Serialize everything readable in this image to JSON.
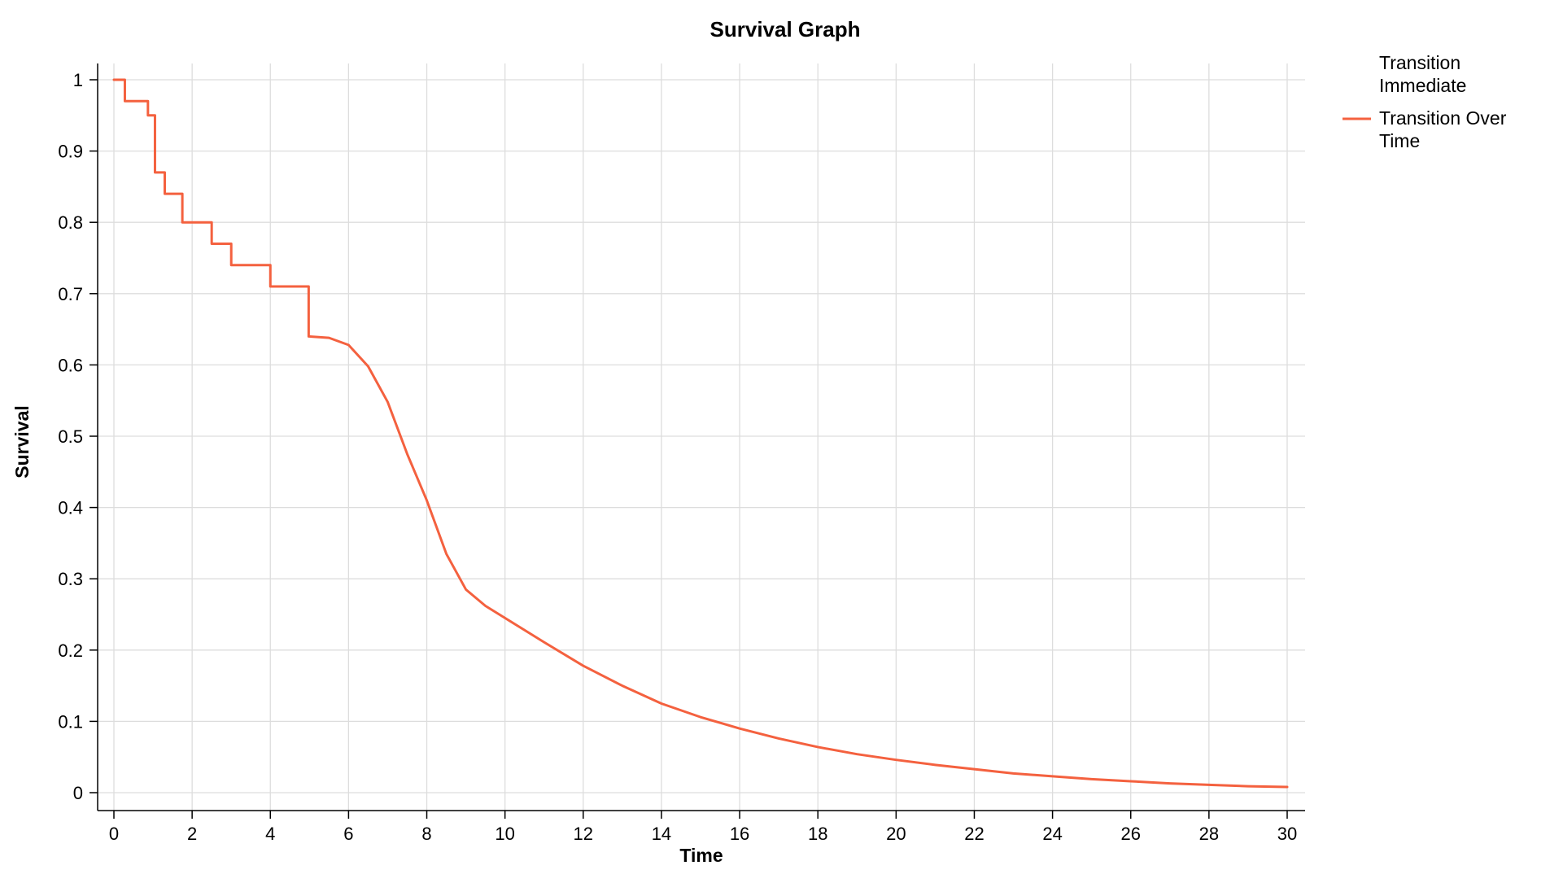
{
  "colors": {
    "series_over_time": "#f4613f",
    "grid": "#dddddd",
    "axis": "#000000",
    "background": "#ffffff"
  },
  "chart_data": {
    "type": "line",
    "title": "Survival Graph",
    "xlabel": "Time",
    "ylabel": "Survival",
    "xlim": [
      0,
      30
    ],
    "ylim": [
      0,
      1
    ],
    "x_ticks": [
      "0",
      "2",
      "4",
      "6",
      "8",
      "10",
      "12",
      "14",
      "16",
      "18",
      "20",
      "22",
      "24",
      "26",
      "28",
      "30"
    ],
    "y_ticks": [
      "0",
      "0.1",
      "0.2",
      "0.3",
      "0.4",
      "0.5",
      "0.6",
      "0.7",
      "0.8",
      "0.9",
      "1"
    ],
    "grid": true,
    "legend_position": "top-right",
    "series": [
      {
        "name": "Transition Immediate",
        "color": "none",
        "x": [],
        "y": []
      },
      {
        "name": "Transition Over Time",
        "color": "#f4613f",
        "step_x": [
          0,
          0.28,
          0.28,
          0.87,
          0.87,
          1.05,
          1.05,
          1.3,
          1.3,
          1.75,
          1.75,
          2.5,
          2.5,
          3.0,
          3.0,
          4.0,
          4.0,
          4.98,
          4.98
        ],
        "step_y": [
          1.0,
          1.0,
          0.97,
          0.97,
          0.95,
          0.95,
          0.87,
          0.87,
          0.84,
          0.84,
          0.8,
          0.8,
          0.77,
          0.77,
          0.74,
          0.74,
          0.71,
          0.71,
          0.64
        ],
        "x": [
          4.98,
          5.5,
          6.0,
          6.5,
          7.0,
          7.5,
          8.0,
          8.5,
          9.0,
          9.5,
          10.0,
          11.0,
          12.0,
          13.0,
          14.0,
          15.0,
          16.0,
          17.0,
          18.0,
          19.0,
          20.0,
          21.0,
          22.0,
          23.0,
          24.0,
          25.0,
          26.0,
          27.0,
          28.0,
          29.0,
          30.0
        ],
        "y": [
          0.64,
          0.638,
          0.628,
          0.598,
          0.548,
          0.475,
          0.41,
          0.335,
          0.285,
          0.262,
          0.245,
          0.211,
          0.178,
          0.15,
          0.125,
          0.106,
          0.09,
          0.076,
          0.064,
          0.054,
          0.046,
          0.039,
          0.033,
          0.027,
          0.023,
          0.019,
          0.016,
          0.013,
          0.011,
          0.009,
          0.008
        ]
      }
    ]
  }
}
